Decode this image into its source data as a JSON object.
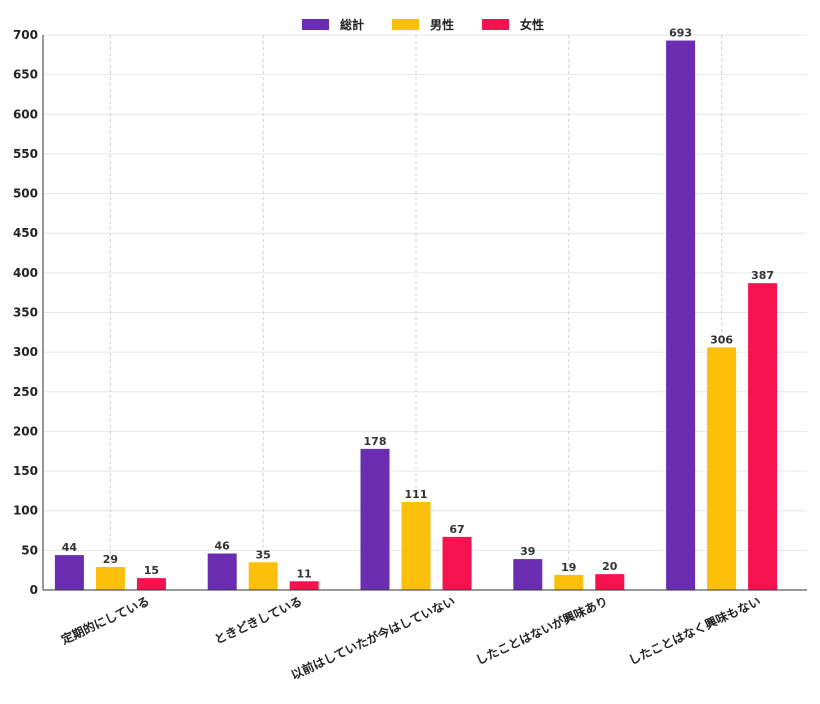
{
  "chart_data": {
    "type": "bar",
    "title": "",
    "xlabel": "",
    "ylabel": "",
    "ylim": [
      0,
      700
    ],
    "ytick_step": 50,
    "legend_position": "top-center",
    "grid": true,
    "categories": [
      "定期的にしている",
      "ときどきしている",
      "以前はしていたが今はしていない",
      "したことはないが興味あり",
      "したことはなく興味もない"
    ],
    "series": [
      {
        "name": "総計",
        "color": "#6a2db2",
        "values": [
          44,
          46,
          178,
          39,
          693
        ]
      },
      {
        "name": "男性",
        "color": "#fdc00a",
        "values": [
          29,
          35,
          111,
          19,
          306
        ]
      },
      {
        "name": "女性",
        "color": "#f6114f",
        "values": [
          15,
          11,
          67,
          20,
          387
        ]
      }
    ]
  }
}
